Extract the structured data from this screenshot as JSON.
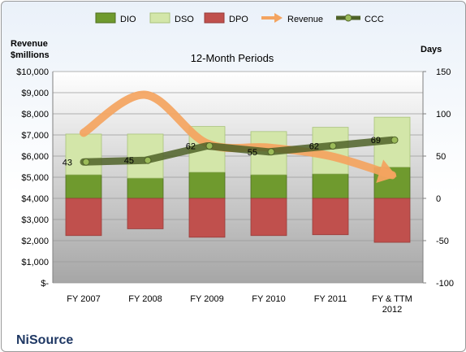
{
  "chart_data": {
    "type": "bar",
    "title": "12-Month Periods",
    "company": "NiSource",
    "left_axis_title": "Revenue\n$millions",
    "right_axis_title": "Days",
    "categories": [
      "FY 2007",
      "FY 2008",
      "FY 2009",
      "FY 2010",
      "FY 2011",
      "FY & TTM\n2012"
    ],
    "left_axis": {
      "min": 0,
      "max": 10000,
      "step": 1000,
      "tick_labels": [
        "$-",
        "$1,000",
        "$2,000",
        "$3,000",
        "$4,000",
        "$5,000",
        "$6,000",
        "$7,000",
        "$8,000",
        "$9,000",
        "$10,000"
      ]
    },
    "right_axis": {
      "min": -100,
      "max": 150,
      "step": 50,
      "tick_labels": [
        "-100",
        "-50",
        "0",
        "50",
        "100",
        "150"
      ]
    },
    "series": [
      {
        "name": "DIO",
        "kind": "stacked-bar-days",
        "color": "#6f9a2e",
        "values": [
          28,
          24,
          31,
          28,
          29,
          37
        ]
      },
      {
        "name": "DSO",
        "kind": "stacked-bar-days",
        "color": "#d3e6a9",
        "values": [
          48,
          52,
          54,
          51,
          55,
          59
        ]
      },
      {
        "name": "DPO",
        "kind": "negative-bar-days",
        "color": "#c0504d",
        "values": [
          -44,
          -36,
          -46,
          -44,
          -43,
          -52
        ]
      },
      {
        "name": "Revenue",
        "kind": "trend-arrow-millions",
        "color": "#f4a460",
        "values": [
          7100,
          8900,
          6600,
          6400,
          6000,
          5100
        ]
      },
      {
        "name": "CCC",
        "kind": "line-days",
        "color": "#4f6228",
        "values": [
          43,
          45,
          62,
          55,
          62,
          69
        ]
      }
    ],
    "ccc_labels": [
      "43",
      "45",
      "62",
      "55",
      "62",
      "69"
    ],
    "legend_position": "top",
    "grid": true
  }
}
